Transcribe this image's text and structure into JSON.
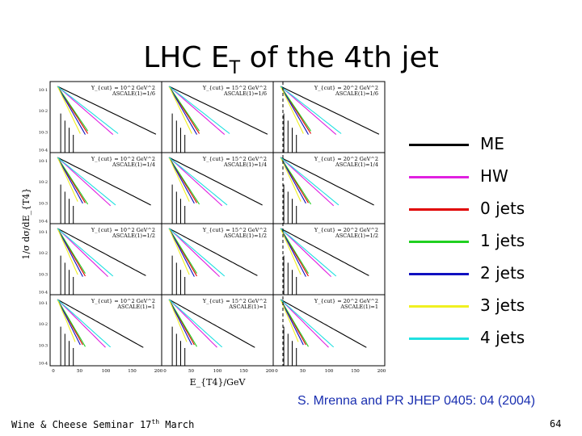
{
  "title": {
    "prefix": "LHC E",
    "sub": "T",
    "suffix": " of the 4th jet"
  },
  "colors": {
    "ME": "#000000",
    "HW": "#e020e0",
    "0 jets": "#e00000",
    "1 jets": "#20d020",
    "2 jets": "#1010c0",
    "3 jets": "#f0f020",
    "4 jets": "#20e0e0"
  },
  "chart_data": {
    "type": "line",
    "title": "LHC ET of the 4th jet",
    "xlabel": "E_{T4}/GeV",
    "ylabel": "1/σ dσ/dE_{T4}",
    "xlim": [
      0,
      200
    ],
    "yscale": "log",
    "xticks": [
      "0",
      "50",
      "100",
      "150",
      "200"
    ],
    "legend": [
      "ME",
      "HW",
      "0 jets",
      "1 jets",
      "2 jets",
      "3 jets",
      "4 jets"
    ],
    "legend_position": "right",
    "panels": [
      {
        "ycut": "Y_{cut} = 10^2 GeV^2",
        "ascale": "ASCALE(1)=1/6"
      },
      {
        "ycut": "Y_{cut} = 15^2 GeV^2",
        "ascale": "ASCALE(1)=1/6"
      },
      {
        "ycut": "Y_{cut} = 20^2 GeV^2",
        "ascale": "ASCALE(1)=1/6"
      },
      {
        "ycut": "Y_{cut} = 10^2 GeV^2",
        "ascale": "ASCALE(1)=1/4"
      },
      {
        "ycut": "Y_{cut} = 15^2 GeV^2",
        "ascale": "ASCALE(1)=1/4"
      },
      {
        "ycut": "Y_{cut} = 20^2 GeV^2",
        "ascale": "ASCALE(1)=1/4"
      },
      {
        "ycut": "Y_{cut} = 10^2 GeV^2",
        "ascale": "ASCALE(1)=1/2"
      },
      {
        "ycut": "Y_{cut} = 15^2 GeV^2",
        "ascale": "ASCALE(1)=1/2"
      },
      {
        "ycut": "Y_{cut} = 20^2 GeV^2",
        "ascale": "ASCALE(1)=1/2"
      },
      {
        "ycut": "Y_{cut} = 10^2 GeV^2",
        "ascale": "ASCALE(1)=1"
      },
      {
        "ycut": "Y_{cut} = 15^2 GeV^2",
        "ascale": "ASCALE(1)=1"
      },
      {
        "ycut": "Y_{cut} = 20^2 GeV^2",
        "ascale": "ASCALE(1)=1"
      }
    ],
    "series_decay": {
      "ME": 0.028,
      "HW": 0.05,
      "0 jets": 0.09,
      "1 jets": 0.085,
      "2 jets": 0.1,
      "3 jets": 0.12,
      "4 jets": 0.045
    }
  },
  "legend": [
    {
      "label": "ME"
    },
    {
      "label": "HW"
    },
    {
      "label": "0 jets"
    },
    {
      "label": "1 jets"
    },
    {
      "label": "2 jets"
    },
    {
      "label": "3 jets"
    },
    {
      "label": "4 jets"
    }
  ],
  "citation": "S. Mrenna and PR JHEP 0405: 04 (2004)",
  "footer": {
    "left_prefix": "Wine & Cheese Seminar 17",
    "left_sup": "th",
    "left_suffix": " March",
    "page": "64"
  }
}
